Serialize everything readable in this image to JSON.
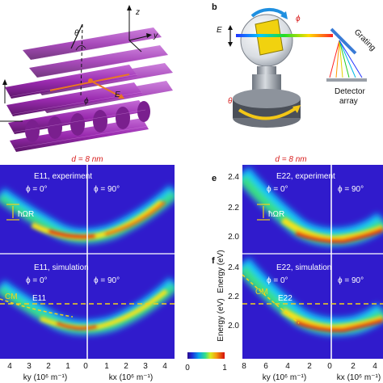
{
  "panel_letters": {
    "b": "b",
    "e": "e",
    "f": "f"
  },
  "panel_a": {
    "axis_z": "z",
    "axis_y": "y",
    "theta": "θ",
    "phi": "ϕ",
    "field": "E"
  },
  "panel_b": {
    "field": "E",
    "phi": "ϕ",
    "theta": "θ",
    "grating": "Grating",
    "detector_line1": "Detector",
    "detector_line2": "array"
  },
  "headers": {
    "left": "d = 8 nm",
    "right": "d = 8 nm"
  },
  "left_maps": {
    "top_title": "E11, experiment",
    "phi0": "ϕ = 0°",
    "phi90": "ϕ = 90°",
    "rabi": "ħΩR",
    "bottom_title": "E11, simulation",
    "cm": "CM",
    "exciton": "E11"
  },
  "right_maps": {
    "top_title": "E22, experiment",
    "phi0": "ϕ = 0°",
    "phi90": "ϕ = 90°",
    "rabi": "ħΩR",
    "bottom_title": "E22, simulation",
    "cm": "CM",
    "exciton": "E22",
    "ylabel": "Energy (eV)",
    "yticks_top": [
      "2.4",
      "2.2",
      "2.0"
    ],
    "yticks_bottom": [
      "2.4",
      "2.2",
      "2.0"
    ]
  },
  "left_xaxis": {
    "ky_ticks": [
      "4",
      "3",
      "2",
      "1",
      "0"
    ],
    "kx_ticks": [
      "0",
      "1",
      "2",
      "3",
      "4"
    ],
    "ky_label": "ky (10⁶ m⁻¹)",
    "kx_label": "kx (10⁶ m⁻¹)"
  },
  "right_xaxis": {
    "ky_ticks": [
      "8",
      "6",
      "4",
      "2",
      "0"
    ],
    "kx_ticks": [
      "0",
      "2",
      "4"
    ],
    "ky_label": "ky (10⁶ m⁻¹)",
    "kx_label": "kx (10⁶ m⁻¹)"
  },
  "colorbar": {
    "min": "0",
    "max": "1"
  },
  "colors": {
    "rod": "#9a2bb0",
    "beam": "#e87722",
    "accent_red": "#d81e1e",
    "dash": "#f2d21b"
  }
}
